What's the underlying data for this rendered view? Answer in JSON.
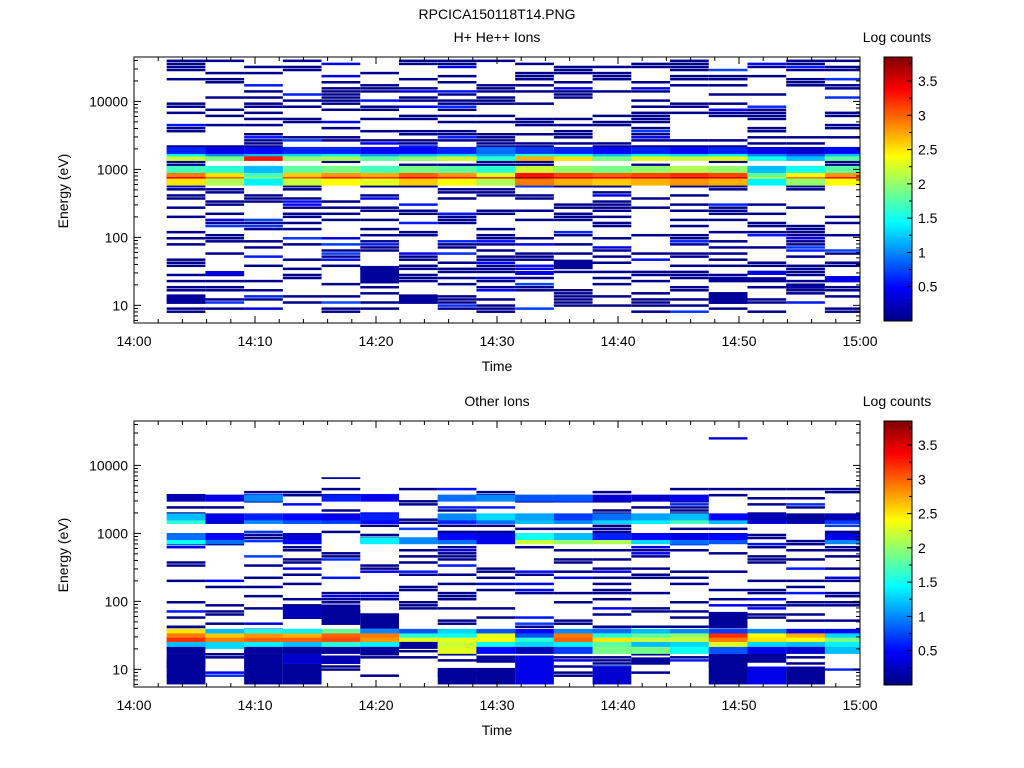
{
  "figure_title": "RPCICA150118T14.PNG",
  "colors": {
    "colormap": [
      "#00007f",
      "#0000ff",
      "#007fff",
      "#00ffff",
      "#7fff7f",
      "#ffff00",
      "#ff7f00",
      "#ff0000",
      "#7f0000"
    ],
    "background": "#ffffff",
    "axis": "#000000"
  },
  "chart_data": [
    {
      "type": "heatmap",
      "title": "H+ He++ Ions",
      "xlabel": "Time",
      "ylabel": "Energy (eV)",
      "x_ticks": [
        "14:00",
        "14:10",
        "14:20",
        "14:30",
        "14:40",
        "14:50",
        "15:00"
      ],
      "x_range_minutes": [
        0,
        60
      ],
      "y_scale": "log",
      "y_range": [
        5.5,
        45000
      ],
      "y_ticks": [
        "10",
        "100",
        "1000",
        "10000"
      ],
      "colorbar": {
        "label": "Log counts",
        "range": [
          0,
          3.85
        ],
        "ticks": [
          "0.5",
          "1",
          "1.5",
          "2",
          "2.5",
          "3",
          "3.5"
        ]
      },
      "column_edges_minutes": [
        2.7,
        5.9,
        9.1,
        12.3,
        15.5,
        18.7,
        21.9,
        25.1,
        28.3,
        31.5,
        34.7,
        37.9,
        41.1,
        44.3,
        47.5,
        50.7,
        53.9,
        57.1,
        60.3
      ],
      "bands": [
        {
          "e": 750,
          "values": [
            3.4,
            3.0,
            2.0,
            3.1,
            3.3,
            3.2,
            3.4,
            3.3,
            3.2,
            3.7,
            3.5,
            3.4,
            3.5,
            3.6,
            3.5,
            2.2,
            2.9,
            3.3
          ]
        },
        {
          "e": 870,
          "values": [
            2.9,
            2.5,
            1.7,
            2.6,
            2.8,
            2.7,
            3.0,
            2.8,
            2.3,
            3.3,
            3.1,
            3.0,
            3.1,
            3.2,
            3.1,
            1.8,
            2.4,
            2.8
          ]
        },
        {
          "e": 650,
          "values": [
            2.5,
            2.1,
            1.4,
            2.2,
            2.4,
            2.3,
            2.6,
            2.4,
            2.1,
            2.9,
            2.7,
            2.6,
            2.7,
            2.8,
            2.7,
            1.4,
            2.0,
            2.4
          ]
        },
        {
          "e": 1000,
          "values": [
            1.7,
            1.6,
            1.2,
            1.8,
            1.9,
            1.7,
            1.9,
            1.8,
            1.6,
            2.2,
            2.0,
            1.9,
            2.0,
            2.1,
            2.0,
            1.2,
            1.5,
            1.8
          ]
        },
        {
          "e": 1500,
          "values": [
            2.2,
            1.9,
            3.3,
            2.0,
            2.1,
            1.8,
            2.0,
            2.2,
            1.6,
            2.7,
            2.5,
            1.9,
            2.3,
            2.2,
            2.3,
            1.5,
            1.2,
            1.8
          ]
        },
        {
          "e": 1750,
          "values": [
            1.4,
            1.0,
            1.2,
            1.3,
            1.4,
            1.1,
            1.2,
            1.3,
            1.1,
            1.6,
            1.5,
            1.2,
            1.4,
            1.3,
            1.4,
            1.0,
            0.8,
            1.2
          ]
        },
        {
          "e": 1900,
          "values": [
            0.6,
            0.4,
            0.5,
            0.6,
            0.6,
            0.5,
            0.5,
            0.6,
            0.9,
            0.7,
            0.6,
            0.5,
            0.6,
            0.5,
            0.6,
            0.4,
            0.3,
            0.5
          ]
        }
      ],
      "noise_range": [
        8,
        42000
      ],
      "noise_density": 0.45,
      "noise_seed": 11,
      "extra_blocks": [
        {
          "col": 0,
          "e_lo": 10.5,
          "e_hi": 14.5,
          "v": 0.1
        },
        {
          "col": 6,
          "e_lo": 10.5,
          "e_hi": 14.5,
          "v": 0.1
        },
        {
          "col": 14,
          "e_lo": 10.5,
          "e_hi": 14.5,
          "v": 0.1
        },
        {
          "col": 5,
          "e_lo": 21,
          "e_hi": 38,
          "v": 0.1
        },
        {
          "col": 10,
          "e_lo": 34,
          "e_hi": 47,
          "v": 0.1
        },
        {
          "col": 1,
          "e_lo": 28,
          "e_hi": 32,
          "v": 0.4
        },
        {
          "col": 9,
          "e_lo": 28,
          "e_hi": 32,
          "v": 0.4
        },
        {
          "col": 15,
          "e_lo": 28,
          "e_hi": 32,
          "v": 0.4
        },
        {
          "col": 17,
          "e_lo": 22,
          "e_hi": 27,
          "v": 0.4
        },
        {
          "col": 16,
          "e_lo": 17.5,
          "e_hi": 21,
          "v": 0.1
        },
        {
          "col": 14,
          "e_lo": 23,
          "e_hi": 26,
          "v": 0.1
        },
        {
          "col": 15,
          "e_lo": 23,
          "e_hi": 26,
          "v": 0.1
        }
      ]
    },
    {
      "type": "heatmap",
      "title": "Other Ions",
      "xlabel": "Time",
      "ylabel": "Energy (eV)",
      "x_ticks": [
        "14:00",
        "14:10",
        "14:20",
        "14:30",
        "14:40",
        "14:50",
        "15:00"
      ],
      "x_range_minutes": [
        0,
        60
      ],
      "y_scale": "log",
      "y_range": [
        5.5,
        45000
      ],
      "y_ticks": [
        "10",
        "100",
        "1000",
        "10000"
      ],
      "colorbar": {
        "label": "Log counts",
        "range": [
          0,
          3.85
        ],
        "ticks": [
          "0.5",
          "1",
          "1.5",
          "2",
          "2.5",
          "3",
          "3.5"
        ]
      },
      "column_edges_minutes": [
        2.7,
        5.9,
        9.1,
        12.3,
        15.5,
        18.7,
        21.9,
        25.1,
        28.3,
        31.5,
        34.7,
        37.9,
        41.1,
        44.3,
        47.5,
        50.7,
        53.9,
        57.1,
        60.3
      ],
      "bands": [
        {
          "e": 35,
          "values": [
            2.5,
            1.2,
            1.5,
            1.4,
            1.8,
            1.0,
            0.8,
            1.3,
            0.8,
            0.5,
            1.0,
            0.9,
            1.2,
            1.0,
            0.7,
            1.0,
            0.5,
            0.5
          ]
        },
        {
          "e": 30,
          "values": [
            2.9,
            2.6,
            2.8,
            2.7,
            3.0,
            2.9,
            1.6,
            1.5,
            2.3,
            0.8,
            2.9,
            1.6,
            1.8,
            2.0,
            3.2,
            2.4,
            2.7,
            1.3
          ]
        },
        {
          "e": 26,
          "values": [
            3.2,
            2.9,
            3.0,
            3.0,
            3.1,
            2.8,
            2.3,
            2.3,
            2.4,
            1.6,
            3.0,
            2.5,
            2.2,
            2.2,
            2.9,
            2.5,
            2.4,
            1.9
          ]
        },
        {
          "e": 22.5,
          "values": [
            1.2,
            1.3,
            1.4,
            1.2,
            1.6,
            1.4,
            0.1,
            2.2,
            1.5,
            1.3,
            1.4,
            1.8,
            1.2,
            1.3,
            2.3,
            1.3,
            1.2,
            1.4
          ]
        },
        {
          "e": 19,
          "values": [
            0.1,
            0.0,
            0.1,
            0.1,
            0.1,
            0.1,
            0.0,
            2.3,
            0.5,
            0.2,
            0.7,
            1.9,
            1.9,
            1.5,
            0.8,
            0.4,
            0.3,
            1.2
          ]
        },
        {
          "e": 780,
          "values": [
            1.5,
            0.9,
            0.0,
            0.5,
            0.0,
            1.4,
            1.0,
            0.9,
            0.4,
            2.2,
            2.0,
            2.1,
            1.3,
            0.9,
            0.8,
            0.0,
            0.0,
            1.0
          ]
        },
        {
          "e": 900,
          "values": [
            0.9,
            0.5,
            0.0,
            0.3,
            0.0,
            0.0,
            0.0,
            0.5,
            0.4,
            1.5,
            1.2,
            0.6,
            0.5,
            0.4,
            0.5,
            0.0,
            0.0,
            0.4
          ]
        },
        {
          "e": 1550,
          "values": [
            1.6,
            0.3,
            1.0,
            0.8,
            0.7,
            0.5,
            0.0,
            0.6,
            0.9,
            1.2,
            1.0,
            1.3,
            1.4,
            1.7,
            1.2,
            0.3,
            0.2,
            0.7
          ]
        },
        {
          "e": 1750,
          "values": [
            1.2,
            0.4,
            0.6,
            0.5,
            0.4,
            0.6,
            0.0,
            1.0,
            1.3,
            1.1,
            0.7,
            0.9,
            1.1,
            1.2,
            0.5,
            0.2,
            0.1,
            0.2
          ]
        },
        {
          "e": 3300,
          "values": [
            0.2,
            0.4,
            1.0,
            0.0,
            0.6,
            0.4,
            0.0,
            0.9,
            1.0,
            0.8,
            0.8,
            0.3,
            0.3,
            0.4,
            0.0,
            0.0,
            0.0,
            0.0
          ]
        }
      ],
      "noise_range": [
        8,
        4500
      ],
      "noise_density": 0.33,
      "noise_seed": 29,
      "extra_blocks": [
        {
          "col": 0,
          "e_lo": 6,
          "e_hi": 17,
          "v": 0.1
        },
        {
          "col": 2,
          "e_lo": 6,
          "e_hi": 17,
          "v": 0.1
        },
        {
          "col": 3,
          "e_lo": 6,
          "e_hi": 12,
          "v": 0.1
        },
        {
          "col": 3,
          "e_lo": 12,
          "e_hi": 17,
          "v": 0.3
        },
        {
          "col": 4,
          "e_lo": 12,
          "e_hi": 16,
          "v": 0.2
        },
        {
          "col": 7,
          "e_lo": 6,
          "e_hi": 10.5,
          "v": 0.1
        },
        {
          "col": 8,
          "e_lo": 6,
          "e_hi": 10.5,
          "v": 0.1
        },
        {
          "col": 8,
          "e_lo": 12.5,
          "e_hi": 16,
          "v": 0.1
        },
        {
          "col": 9,
          "e_lo": 6,
          "e_hi": 16,
          "v": 0.4
        },
        {
          "col": 11,
          "e_lo": 6,
          "e_hi": 11,
          "v": 0.3
        },
        {
          "col": 12,
          "e_lo": 12,
          "e_hi": 15,
          "v": 0.1
        },
        {
          "col": 14,
          "e_lo": 6,
          "e_hi": 17,
          "v": 0.1
        },
        {
          "col": 15,
          "e_lo": 6,
          "e_hi": 11,
          "v": 0.4
        },
        {
          "col": 15,
          "e_lo": 12.5,
          "e_hi": 16,
          "v": 0.1
        },
        {
          "col": 16,
          "e_lo": 6,
          "e_hi": 11,
          "v": 0.1
        },
        {
          "col": 3,
          "e_lo": 55,
          "e_hi": 85,
          "v": 0.2
        },
        {
          "col": 4,
          "e_lo": 45,
          "e_hi": 90,
          "v": 0.1
        },
        {
          "col": 5,
          "e_lo": 40,
          "e_hi": 65,
          "v": 0.1
        },
        {
          "col": 14,
          "e_lo": 40,
          "e_hi": 70,
          "v": 0.1
        },
        {
          "col": 14,
          "e_lo": 24000,
          "e_hi": 26000,
          "v": 0.3
        },
        {
          "col": 4,
          "e_lo": 6300,
          "e_hi": 6700,
          "v": 0.1
        }
      ]
    }
  ]
}
